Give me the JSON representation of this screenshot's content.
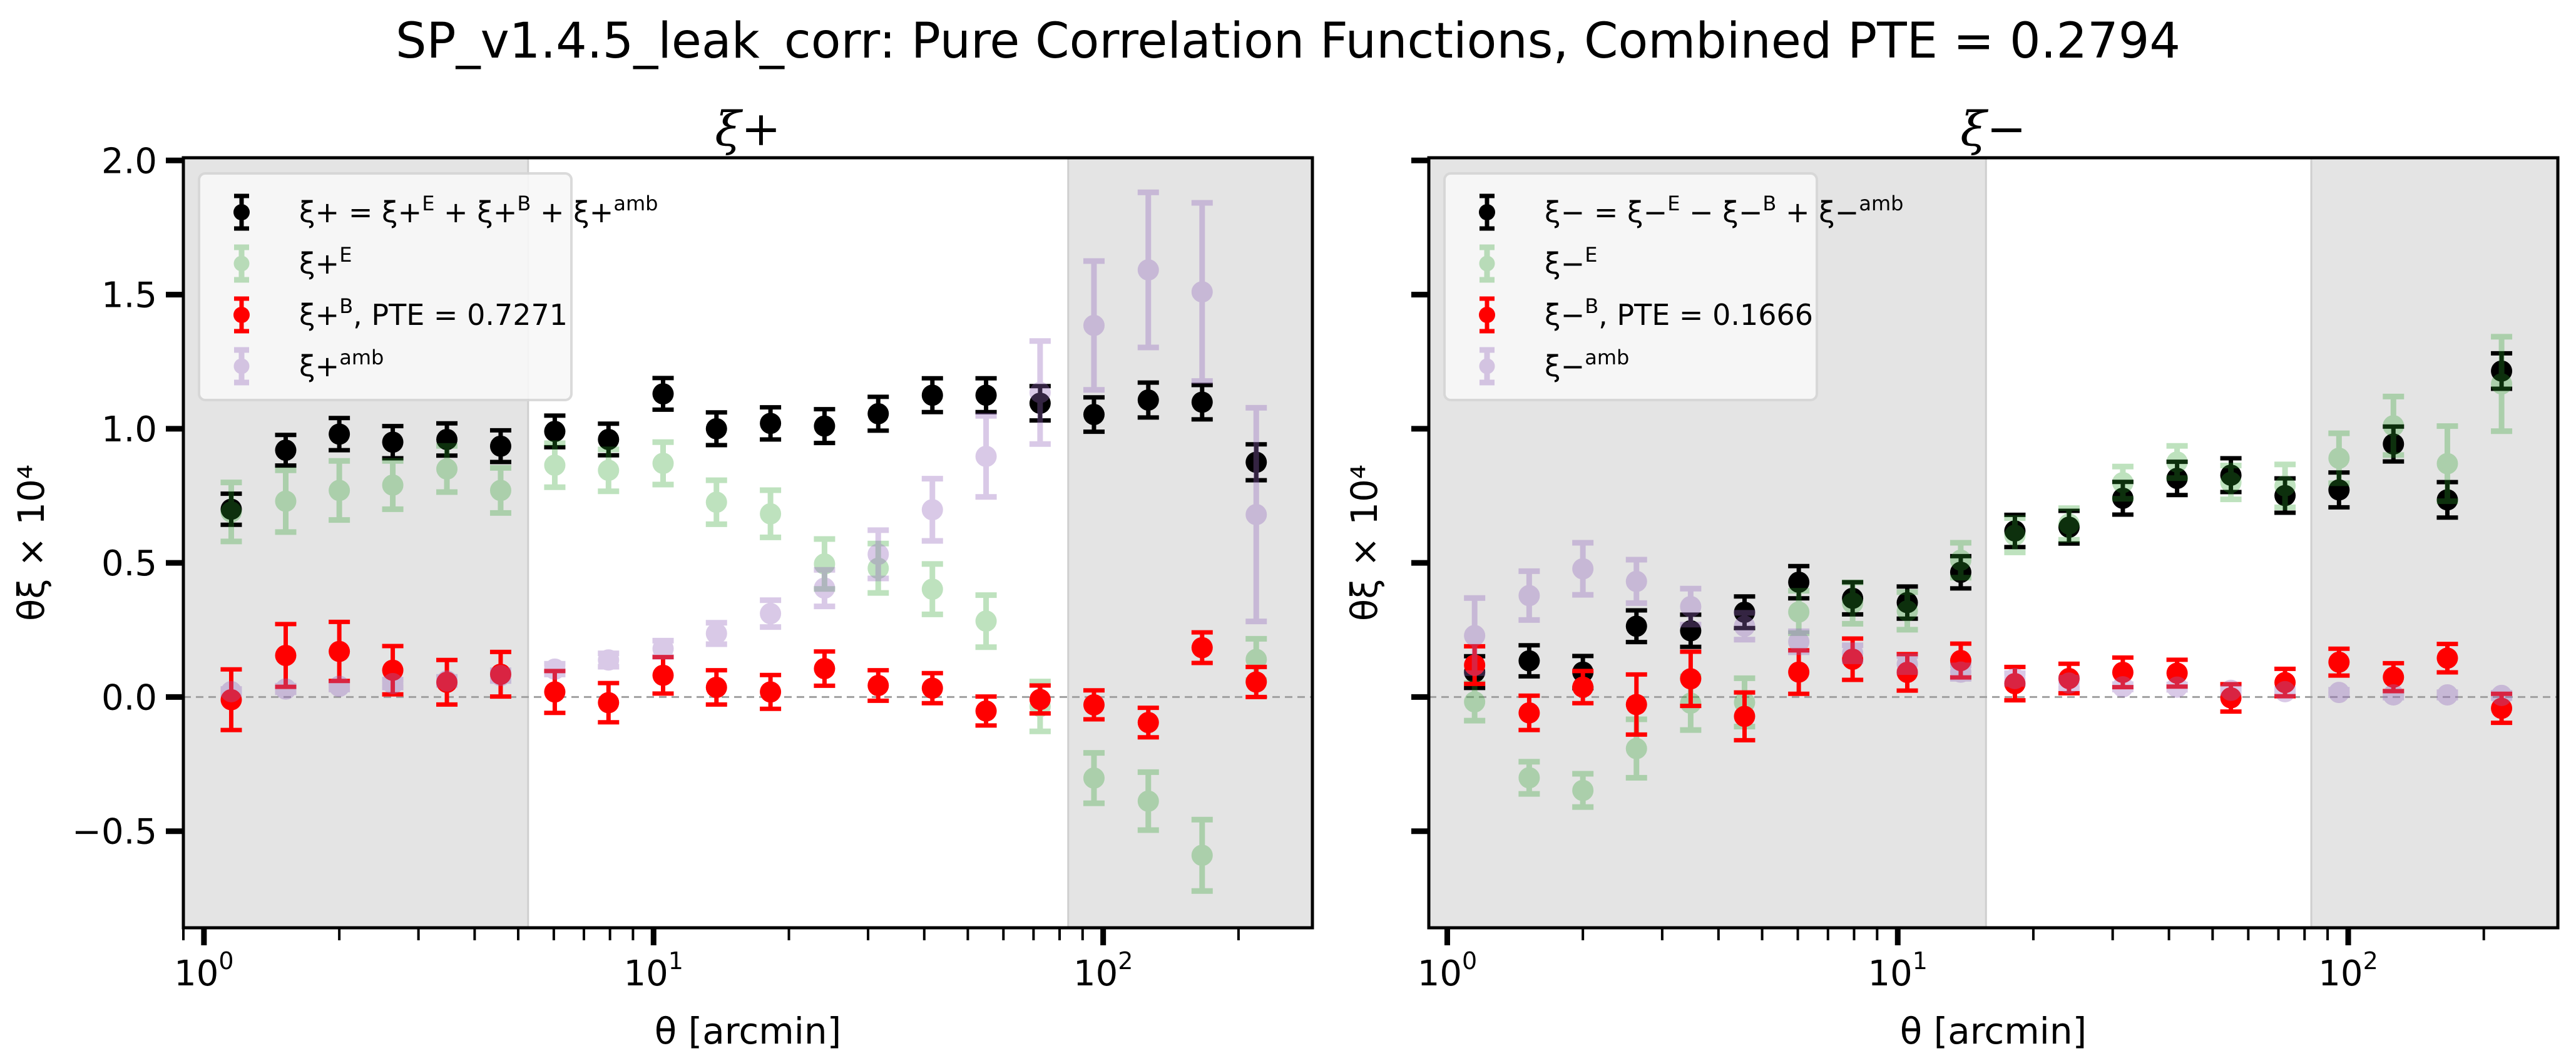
{
  "chart_data": {
    "type": "scatter",
    "title": "SP_v1.4.5_leak_corr: Pure Correlation Functions, Combined PTE = 0.2794",
    "x": [
      1.15,
      1.52,
      2.0,
      2.63,
      3.47,
      4.57,
      6.03,
      7.94,
      10.5,
      13.8,
      18.2,
      24.0,
      31.6,
      41.7,
      54.9,
      72.4,
      95.4,
      126,
      166,
      219
    ],
    "panels": [
      {
        "id": "xi_plus",
        "title": "ξ+",
        "xlabel": "θ [arcmin]",
        "ylabel": "θξ × 10⁴",
        "xscale": "log",
        "xlim": [
          0.9,
          292
        ],
        "ylim": [
          -0.86,
          2.01
        ],
        "xticks": [
          1,
          10,
          100
        ],
        "xtick_labels": [
          "10",
          "10",
          "10"
        ],
        "xtick_exponents": [
          "0",
          "1",
          "2"
        ],
        "yticks": [
          -0.5,
          0.0,
          0.5,
          1.0,
          1.5,
          2.0
        ],
        "ytick_labels": [
          "−0.5",
          "0.0",
          "0.5",
          "1.0",
          "1.5",
          "2.0"
        ],
        "show_ytick_labels": true,
        "zero_line": true,
        "shaded_ranges": [
          [
            0.9,
            5.26
          ],
          [
            83.6,
            292
          ]
        ],
        "legend": {
          "placement": "top-left",
          "entries": [
            {
              "series": "total",
              "text": "ξ+ = ξ+^E + ξ+^B + ξ+^amb"
            },
            {
              "series": "E",
              "text": "ξ+^E"
            },
            {
              "series": "B",
              "text": "ξ+^B, PTE = 0.7271"
            },
            {
              "series": "amb",
              "text": "ξ+^amb"
            }
          ]
        },
        "series": [
          {
            "name": "total",
            "label": "ξ+ = ξ+^E + ξ+^B + ξ+^amb",
            "color": "#000000",
            "alpha": 1.0,
            "filled": true,
            "values": [
              0.7,
              0.92,
              0.98,
              0.95,
              0.96,
              0.935,
              0.99,
              0.96,
              1.13,
              1.0,
              1.02,
              1.01,
              1.056,
              1.125,
              1.125,
              1.095,
              1.053,
              1.107,
              1.099,
              0.875
            ],
            "errors": [
              0.058,
              0.057,
              0.06,
              0.06,
              0.06,
              0.059,
              0.059,
              0.059,
              0.059,
              0.061,
              0.06,
              0.063,
              0.063,
              0.063,
              0.063,
              0.064,
              0.064,
              0.065,
              0.064,
              0.067
            ]
          },
          {
            "name": "E",
            "label": "ξ+^E",
            "color": "#2ca02c",
            "alpha": 0.3,
            "filled": false,
            "values": [
              0.69,
              0.73,
              0.77,
              0.79,
              0.85,
              0.77,
              0.864,
              0.845,
              0.871,
              0.726,
              0.683,
              0.496,
              0.48,
              0.402,
              0.283,
              -0.035,
              -0.302,
              -0.388,
              -0.59,
              0.14
            ],
            "errors": [
              0.11,
              0.115,
              0.11,
              0.09,
              0.086,
              0.084,
              0.082,
              0.078,
              0.079,
              0.082,
              0.088,
              0.093,
              0.092,
              0.094,
              0.097,
              0.093,
              0.094,
              0.108,
              0.133,
              0.077
            ]
          },
          {
            "name": "B",
            "label": "ξ+^B, PTE = 0.7271",
            "color": "#ff0000",
            "alpha": 1.0,
            "filled": true,
            "pte": 0.7271,
            "values": [
              -0.01,
              0.155,
              0.17,
              0.1,
              0.055,
              0.085,
              0.019,
              -0.021,
              0.081,
              0.036,
              0.019,
              0.106,
              0.043,
              0.033,
              -0.052,
              -0.009,
              -0.029,
              -0.095,
              0.184,
              0.056
            ],
            "errors": [
              0.113,
              0.117,
              0.11,
              0.09,
              0.083,
              0.083,
              0.078,
              0.073,
              0.068,
              0.064,
              0.063,
              0.064,
              0.057,
              0.056,
              0.054,
              0.052,
              0.054,
              0.055,
              0.057,
              0.056
            ]
          },
          {
            "name": "amb",
            "label": "ξ+^amb",
            "color": "#9467bd",
            "alpha": 0.35,
            "filled": false,
            "values": [
              0.02,
              0.03,
              0.04,
              0.05,
              0.06,
              0.08,
              0.104,
              0.138,
              0.18,
              0.237,
              0.311,
              0.406,
              0.532,
              0.698,
              0.897,
              1.135,
              1.385,
              1.592,
              1.51,
              0.68
            ],
            "errors": [
              0.01,
              0.012,
              0.012,
              0.015,
              0.015,
              0.02,
              0.02,
              0.025,
              0.03,
              0.04,
              0.05,
              0.068,
              0.09,
              0.116,
              0.151,
              0.192,
              0.24,
              0.289,
              0.332,
              0.398
            ]
          }
        ]
      },
      {
        "id": "xi_minus",
        "title": "ξ−",
        "xlabel": "θ [arcmin]",
        "ylabel": "θξ × 10⁴",
        "xscale": "log",
        "xlim": [
          0.91,
          292
        ],
        "ylim": [
          -0.86,
          2.01
        ],
        "xticks": [
          1,
          10,
          100
        ],
        "xtick_labels": [
          "10",
          "10",
          "10"
        ],
        "xtick_exponents": [
          "0",
          "1",
          "2"
        ],
        "yticks": [
          -0.5,
          0.0,
          0.5,
          1.0,
          1.5,
          2.0
        ],
        "ytick_labels": [
          "",
          "",
          "",
          "",
          "",
          ""
        ],
        "show_ytick_labels": false,
        "zero_line": true,
        "shaded_ranges": [
          [
            0.91,
            15.7
          ],
          [
            82.8,
            292
          ]
        ],
        "legend": {
          "placement": "top-left",
          "entries": [
            {
              "series": "total",
              "text": "ξ− = ξ−^E − ξ−^B + ξ−^amb"
            },
            {
              "series": "E",
              "text": "ξ−^E"
            },
            {
              "series": "B",
              "text": "ξ−^B, PTE = 0.1666"
            },
            {
              "series": "amb",
              "text": "ξ−^amb"
            }
          ]
        },
        "series": [
          {
            "name": "total",
            "label": "ξ− = ξ−^E − ξ−^B + ξ−^amb",
            "color": "#000000",
            "alpha": 1.0,
            "filled": true,
            "values": [
              0.093,
              0.135,
              0.093,
              0.264,
              0.247,
              0.316,
              0.428,
              0.368,
              0.352,
              0.465,
              0.619,
              0.633,
              0.741,
              0.815,
              0.827,
              0.751,
              0.772,
              0.943,
              0.735,
              1.215
            ],
            "errors": [
              0.059,
              0.058,
              0.06,
              0.059,
              0.06,
              0.059,
              0.06,
              0.06,
              0.06,
              0.06,
              0.06,
              0.061,
              0.061,
              0.062,
              0.063,
              0.064,
              0.065,
              0.065,
              0.066,
              0.066
            ]
          },
          {
            "name": "E",
            "label": "ξ−^E",
            "color": "#2ca02c",
            "alpha": 0.3,
            "filled": false,
            "values": [
              -0.018,
              -0.301,
              -0.348,
              -0.192,
              -0.023,
              -0.02,
              0.317,
              0.35,
              0.321,
              0.51,
              0.603,
              0.645,
              0.799,
              0.876,
              0.8,
              0.787,
              0.89,
              1.011,
              0.87,
              1.167
            ],
            "errors": [
              0.07,
              0.06,
              0.062,
              0.109,
              0.1,
              0.09,
              0.079,
              0.077,
              0.07,
              0.065,
              0.064,
              0.059,
              0.06,
              0.06,
              0.063,
              0.08,
              0.093,
              0.109,
              0.14,
              0.176
            ]
          },
          {
            "name": "B",
            "label": "ξ−^B, PTE = 0.1666",
            "color": "#ff0000",
            "alpha": 1.0,
            "filled": true,
            "pte": 0.1666,
            "values": [
              0.119,
              -0.059,
              0.037,
              -0.028,
              0.068,
              -0.072,
              0.093,
              0.141,
              0.092,
              0.136,
              0.05,
              0.069,
              0.092,
              0.089,
              -0.003,
              0.054,
              0.13,
              0.074,
              0.145,
              -0.042
            ],
            "errors": [
              0.07,
              0.064,
              0.06,
              0.112,
              0.101,
              0.089,
              0.081,
              0.077,
              0.068,
              0.063,
              0.062,
              0.055,
              0.055,
              0.05,
              0.051,
              0.051,
              0.05,
              0.052,
              0.053,
              0.054
            ]
          },
          {
            "name": "amb",
            "label": "ξ−^amb",
            "color": "#9467bd",
            "alpha": 0.35,
            "filled": false,
            "values": [
              0.229,
              0.378,
              0.478,
              0.431,
              0.337,
              0.264,
              0.206,
              0.163,
              0.123,
              0.093,
              0.069,
              0.052,
              0.038,
              0.037,
              0.025,
              0.02,
              0.017,
              0.008,
              0.008,
              0.006
            ],
            "errors": [
              0.14,
              0.091,
              0.097,
              0.081,
              0.067,
              0.05,
              0.039,
              0.03,
              0.03,
              0.025,
              0.02,
              0.02,
              0.01,
              0.01,
              0.01,
              0.01,
              0.01,
              0.01,
              0.01,
              0.01
            ]
          }
        ]
      }
    ]
  },
  "figure": {
    "suptitle": "SP_v1.4.5_leak_corr: Pure Correlation Functions, Combined PTE = 0.2794",
    "combined_pte": 0.2794,
    "colors": {
      "shade": "#e4e4e4",
      "legend_bg": "#f8f8f8",
      "legend_border": "#d6d6d6",
      "zero_line": "#a0a0a0"
    }
  }
}
